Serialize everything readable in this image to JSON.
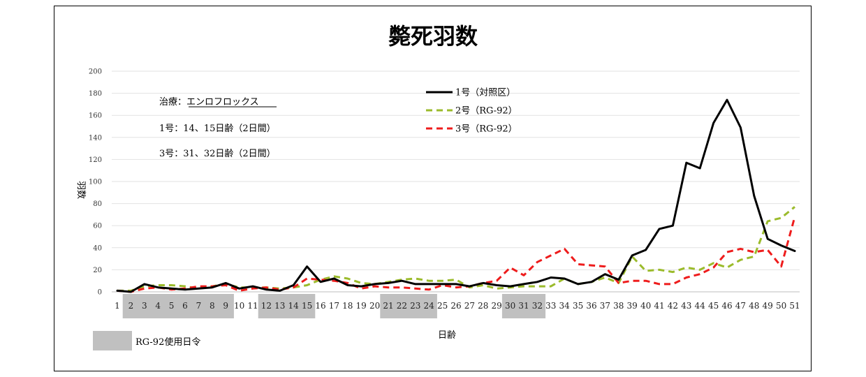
{
  "chart_data": {
    "type": "line",
    "title": "斃死羽数",
    "xlabel": "日齢",
    "ylabel": "羽数",
    "ylim": [
      0,
      200
    ],
    "yticks": [
      0,
      20,
      40,
      60,
      80,
      100,
      120,
      140,
      160,
      180,
      200
    ],
    "x": [
      1,
      2,
      3,
      4,
      5,
      6,
      7,
      8,
      9,
      10,
      11,
      12,
      13,
      14,
      15,
      16,
      17,
      18,
      19,
      20,
      21,
      22,
      23,
      24,
      25,
      26,
      27,
      28,
      29,
      30,
      31,
      32,
      33,
      34,
      35,
      36,
      37,
      38,
      39,
      40,
      41,
      42,
      43,
      44,
      45,
      46,
      47,
      48,
      49,
      50,
      51
    ],
    "series": [
      {
        "name": "1号（対照区）",
        "color": "#000000",
        "dash": "solid",
        "values": [
          1,
          0,
          7,
          4,
          3,
          2,
          3,
          4,
          8,
          3,
          5,
          2,
          1,
          6,
          23,
          9,
          12,
          6,
          5,
          7,
          8,
          10,
          7,
          7,
          7,
          7,
          5,
          8,
          6,
          5,
          7,
          9,
          13,
          12,
          7,
          9,
          16,
          11,
          33,
          38,
          57,
          60,
          117,
          112,
          153,
          174,
          149,
          87,
          48,
          42,
          37
        ]
      },
      {
        "name": "2号（RG-92）",
        "color": "#9bbb2b",
        "dash": "dashed",
        "values": [
          1,
          1,
          5,
          6,
          6,
          5,
          3,
          5,
          7,
          4,
          4,
          4,
          3,
          4,
          6,
          11,
          14,
          12,
          8,
          7,
          9,
          11,
          12,
          10,
          10,
          11,
          4,
          6,
          3,
          4,
          5,
          5,
          5,
          12,
          7,
          9,
          13,
          8,
          32,
          19,
          20,
          18,
          22,
          20,
          26,
          22,
          29,
          32,
          64,
          67,
          77
        ]
      },
      {
        "name": "3号（RG-92）",
        "color": "#ee1c1c",
        "dash": "dashed",
        "values": [
          1,
          0,
          3,
          4,
          2,
          3,
          5,
          5,
          6,
          1,
          3,
          4,
          2,
          4,
          12,
          11,
          10,
          8,
          3,
          5,
          4,
          4,
          3,
          2,
          6,
          4,
          5,
          8,
          10,
          22,
          15,
          27,
          33,
          39,
          25,
          24,
          23,
          8,
          10,
          10,
          7,
          7,
          13,
          16,
          22,
          36,
          39,
          36,
          38,
          23,
          68
        ]
      }
    ],
    "highlight_ranges": [
      [
        2,
        9
      ],
      [
        12,
        15
      ],
      [
        21,
        24
      ],
      [
        30,
        32
      ]
    ],
    "highlight_legend": "RG-92使用日令",
    "legend_position": "top-center",
    "grid": true
  },
  "notes": {
    "treatment": "治療：エンロフロックス",
    "group1": "1号：14、15日齢（2日間）",
    "group3": "3号：31、32日齢（2日間）"
  }
}
